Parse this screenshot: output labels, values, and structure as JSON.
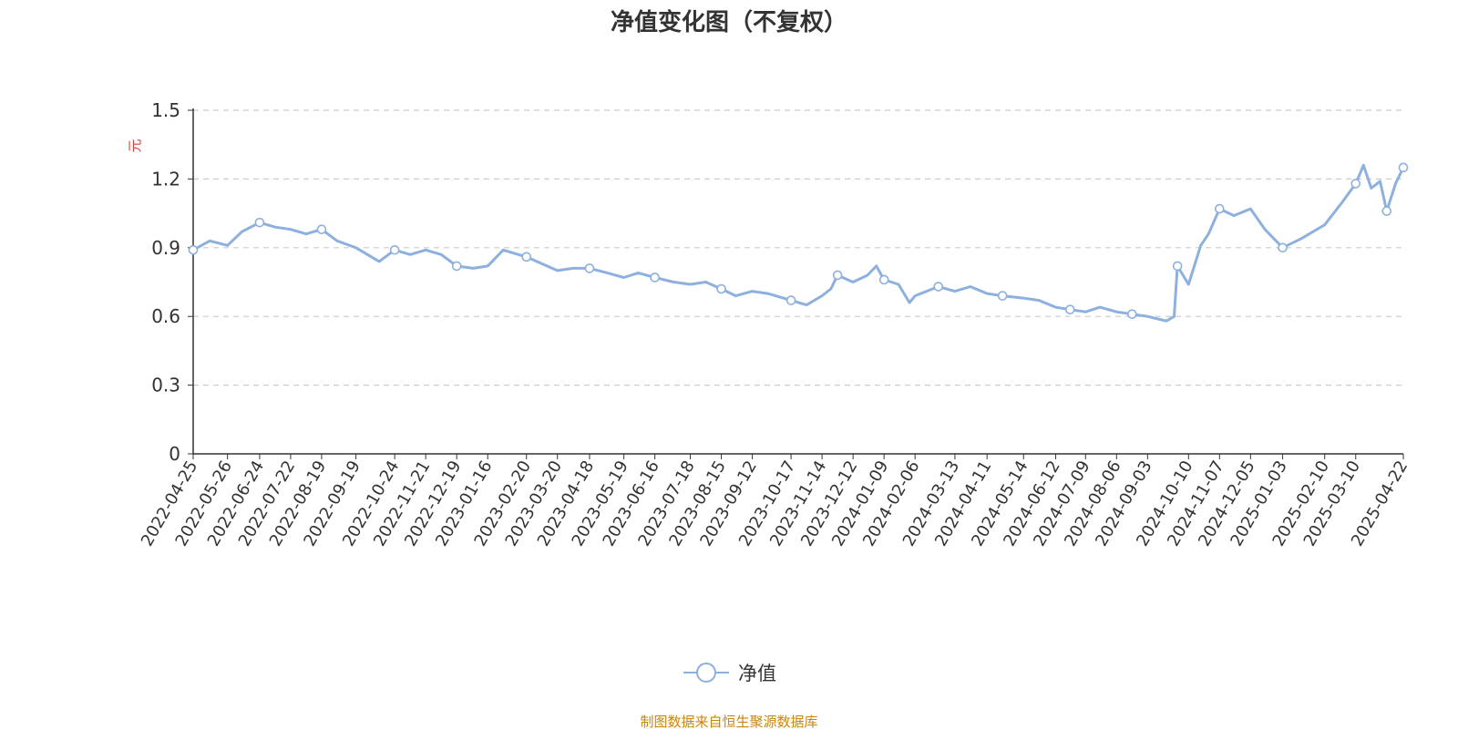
{
  "title": "净值变化图（不复权）",
  "source_text": "制图数据来自恒生聚源数据库",
  "colors": {
    "line": "#8eb0df",
    "grid": "#cccccc",
    "axis": "#333333",
    "unit": "#e53935",
    "source": "#c8860a"
  },
  "chart_data": {
    "type": "line",
    "title": "净值变化图（不复权）",
    "ylabel": "元",
    "ylim": [
      0,
      1.5
    ],
    "yticks": [
      "0",
      "0.3",
      "0.6",
      "0.9",
      "1.2",
      "1.5"
    ],
    "grid": true,
    "legend_position": "bottom-center",
    "x_tick_labels": [
      "2022-04-25",
      "2022-05-26",
      "2022-06-24",
      "2022-07-22",
      "2022-08-19",
      "2022-09-19",
      "2022-10-24",
      "2022-11-21",
      "2022-12-19",
      "2023-01-16",
      "2023-02-20",
      "2023-03-20",
      "2023-04-18",
      "2023-05-19",
      "2023-06-16",
      "2023-07-18",
      "2023-08-15",
      "2023-09-12",
      "2023-10-17",
      "2023-11-14",
      "2023-12-12",
      "2024-01-09",
      "2024-02-06",
      "2024-03-13",
      "2024-04-11",
      "2024-05-14",
      "2024-06-12",
      "2024-07-09",
      "2024-08-06",
      "2024-09-03",
      "2024-10-10",
      "2024-11-07",
      "2024-12-05",
      "2025-01-03",
      "2025-02-10",
      "2025-03-10",
      "2025-04-22"
    ],
    "series": [
      {
        "name": "净值",
        "x": [
          "2022-04-25",
          "2022-05-10",
          "2022-05-26",
          "2022-06-08",
          "2022-06-24",
          "2022-07-08",
          "2022-07-22",
          "2022-08-05",
          "2022-08-19",
          "2022-09-02",
          "2022-09-19",
          "2022-10-10",
          "2022-10-24",
          "2022-11-07",
          "2022-11-21",
          "2022-12-05",
          "2022-12-19",
          "2023-01-03",
          "2023-01-16",
          "2023-01-30",
          "2023-02-20",
          "2023-03-06",
          "2023-03-20",
          "2023-04-03",
          "2023-04-18",
          "2023-05-04",
          "2023-05-19",
          "2023-06-01",
          "2023-06-16",
          "2023-07-03",
          "2023-07-18",
          "2023-08-01",
          "2023-08-15",
          "2023-08-28",
          "2023-09-12",
          "2023-09-26",
          "2023-10-17",
          "2023-10-31",
          "2023-11-14",
          "2023-11-22",
          "2023-11-28",
          "2023-12-12",
          "2023-12-25",
          "2024-01-02",
          "2024-01-09",
          "2024-01-22",
          "2024-02-01",
          "2024-02-06",
          "2024-02-27",
          "2024-03-13",
          "2024-03-27",
          "2024-04-11",
          "2024-04-25",
          "2024-05-14",
          "2024-05-28",
          "2024-06-12",
          "2024-06-25",
          "2024-07-09",
          "2024-07-22",
          "2024-08-06",
          "2024-08-20",
          "2024-09-03",
          "2024-09-20",
          "2024-09-27",
          "2024-09-30",
          "2024-10-10",
          "2024-10-21",
          "2024-10-28",
          "2024-11-07",
          "2024-11-20",
          "2024-12-05",
          "2024-12-18",
          "2025-01-03",
          "2025-01-20",
          "2025-02-10",
          "2025-02-26",
          "2025-03-10",
          "2025-03-17",
          "2025-03-24",
          "2025-04-01",
          "2025-04-07",
          "2025-04-15",
          "2025-04-22"
        ],
        "values": [
          0.89,
          0.93,
          0.91,
          0.97,
          1.01,
          0.99,
          0.98,
          0.96,
          0.98,
          0.93,
          0.9,
          0.84,
          0.89,
          0.87,
          0.89,
          0.87,
          0.82,
          0.81,
          0.82,
          0.89,
          0.86,
          0.83,
          0.8,
          0.81,
          0.81,
          0.79,
          0.77,
          0.79,
          0.77,
          0.75,
          0.74,
          0.75,
          0.72,
          0.69,
          0.71,
          0.7,
          0.67,
          0.65,
          0.69,
          0.72,
          0.78,
          0.75,
          0.78,
          0.82,
          0.76,
          0.74,
          0.66,
          0.69,
          0.73,
          0.71,
          0.73,
          0.7,
          0.69,
          0.68,
          0.67,
          0.64,
          0.63,
          0.62,
          0.64,
          0.62,
          0.61,
          0.6,
          0.58,
          0.6,
          0.82,
          0.74,
          0.91,
          0.96,
          1.07,
          1.04,
          1.07,
          0.98,
          0.9,
          0.94,
          1.0,
          1.1,
          1.18,
          1.26,
          1.16,
          1.19,
          1.06,
          1.18,
          1.25
        ]
      }
    ]
  }
}
